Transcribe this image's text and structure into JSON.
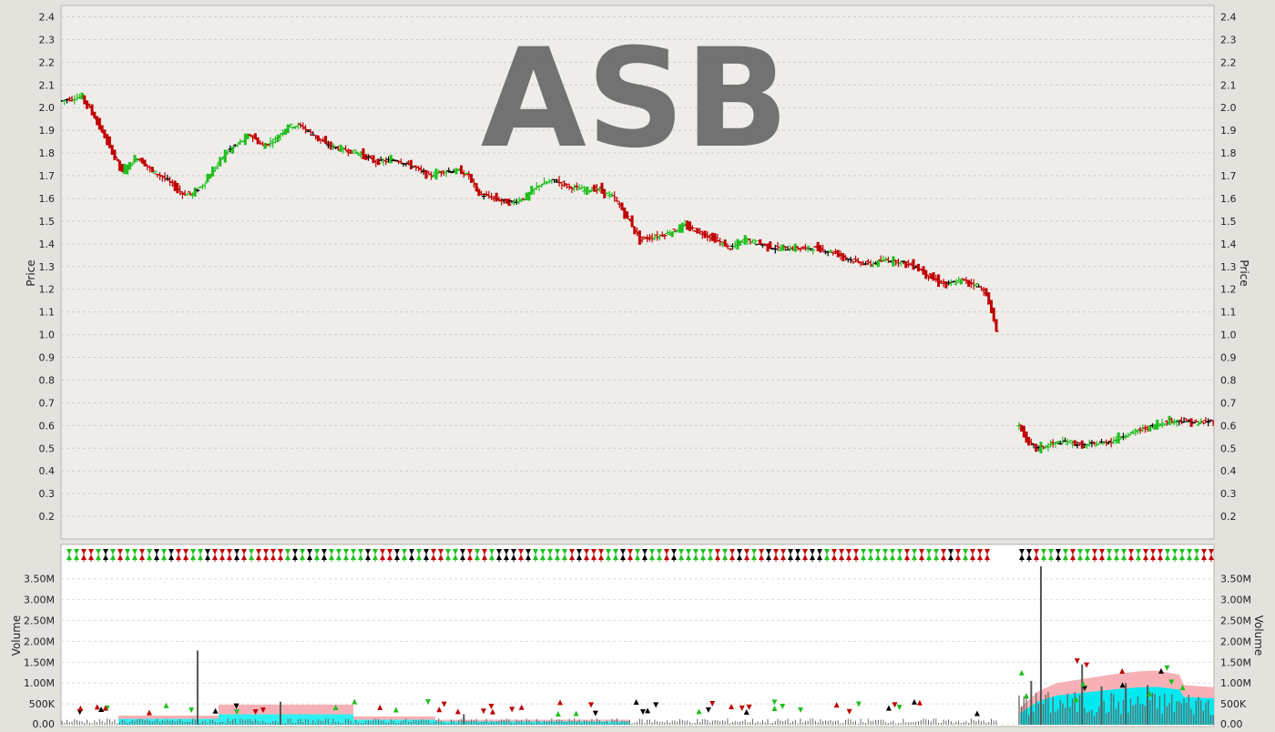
{
  "chart_data": {
    "type": "ohlc",
    "title": "ASB",
    "price_panel": {
      "ylabel": "Price",
      "ylim": [
        0.1,
        2.45
      ],
      "yticks": [
        "0.2",
        "0.3",
        "0.4",
        "0.5",
        "0.6",
        "0.7",
        "0.8",
        "0.9",
        "1.0",
        "1.1",
        "1.2",
        "1.3",
        "1.4",
        "1.5",
        "1.6",
        "1.7",
        "1.8",
        "1.9",
        "2.0",
        "2.1",
        "2.2",
        "2.3",
        "2.4"
      ],
      "grid": true,
      "series": [
        {
          "segment": "first",
          "anchors": [
            [
              0,
              2.03
            ],
            [
              8,
              2.05
            ],
            [
              12,
              1.98
            ],
            [
              18,
              1.85
            ],
            [
              24,
              1.72
            ],
            [
              30,
              1.78
            ],
            [
              36,
              1.72
            ],
            [
              42,
              1.68
            ],
            [
              48,
              1.62
            ],
            [
              52,
              1.62
            ],
            [
              56,
              1.66
            ],
            [
              60,
              1.72
            ],
            [
              65,
              1.8
            ],
            [
              70,
              1.84
            ],
            [
              75,
              1.88
            ],
            [
              80,
              1.83
            ],
            [
              85,
              1.86
            ],
            [
              90,
              1.92
            ],
            [
              95,
              1.92
            ],
            [
              100,
              1.88
            ],
            [
              105,
              1.84
            ],
            [
              110,
              1.82
            ],
            [
              118,
              1.8
            ],
            [
              125,
              1.76
            ],
            [
              133,
              1.77
            ],
            [
              140,
              1.74
            ],
            [
              146,
              1.7
            ],
            [
              152,
              1.72
            ],
            [
              158,
              1.72
            ],
            [
              162,
              1.7
            ],
            [
              166,
              1.62
            ],
            [
              172,
              1.6
            ],
            [
              178,
              1.58
            ],
            [
              184,
              1.6
            ],
            [
              190,
              1.66
            ],
            [
              196,
              1.68
            ],
            [
              202,
              1.65
            ],
            [
              208,
              1.64
            ],
            [
              214,
              1.64
            ],
            [
              220,
              1.6
            ],
            [
              226,
              1.5
            ],
            [
              230,
              1.42
            ],
            [
              236,
              1.43
            ],
            [
              242,
              1.45
            ],
            [
              248,
              1.48
            ],
            [
              254,
              1.45
            ],
            [
              260,
              1.42
            ],
            [
              266,
              1.38
            ],
            [
              272,
              1.42
            ],
            [
              278,
              1.4
            ],
            [
              284,
              1.38
            ],
            [
              292,
              1.38
            ],
            [
              300,
              1.38
            ],
            [
              308,
              1.36
            ],
            [
              316,
              1.32
            ],
            [
              322,
              1.31
            ],
            [
              328,
              1.33
            ],
            [
              334,
              1.32
            ],
            [
              340,
              1.3
            ],
            [
              346,
              1.25
            ],
            [
              352,
              1.22
            ],
            [
              358,
              1.24
            ],
            [
              364,
              1.22
            ],
            [
              368,
              1.18
            ],
            [
              372,
              1.02
            ]
          ]
        },
        {
          "segment": "second",
          "anchors": [
            [
              0,
              0.6
            ],
            [
              4,
              0.52
            ],
            [
              8,
              0.5
            ],
            [
              14,
              0.52
            ],
            [
              20,
              0.53
            ],
            [
              26,
              0.51
            ],
            [
              32,
              0.52
            ],
            [
              38,
              0.53
            ],
            [
              44,
              0.56
            ],
            [
              50,
              0.58
            ],
            [
              56,
              0.6
            ],
            [
              62,
              0.62
            ],
            [
              68,
              0.62
            ],
            [
              74,
              0.61
            ],
            [
              80,
              0.62
            ]
          ]
        }
      ],
      "legend_colors": {
        "up": "#1fbf1f",
        "down": "#c00000",
        "unchanged": "#000000"
      }
    },
    "volume_panel": {
      "ylabel": "Volume",
      "ylim": [
        0,
        3.8
      ],
      "yticks": [
        "0.00",
        "500K",
        "1.00M",
        "1.50M",
        "2.00M",
        "2.50M",
        "3.00M",
        "3.50M"
      ],
      "grid": true,
      "spikes_millions": [
        {
          "segment": "first",
          "index": 54,
          "value": 1.78
        },
        {
          "segment": "first",
          "index": 87,
          "value": 0.55
        },
        {
          "segment": "first",
          "index": 160,
          "value": 0.25
        },
        {
          "segment": "second",
          "index": 5,
          "value": 1.05
        },
        {
          "segment": "second",
          "index": 9,
          "value": 3.8
        },
        {
          "segment": "second",
          "index": 26,
          "value": 1.45
        },
        {
          "segment": "second",
          "index": 34,
          "value": 0.92
        },
        {
          "segment": "second",
          "index": 44,
          "value": 1.0
        },
        {
          "segment": "second",
          "index": 53,
          "value": 0.95
        }
      ]
    }
  }
}
